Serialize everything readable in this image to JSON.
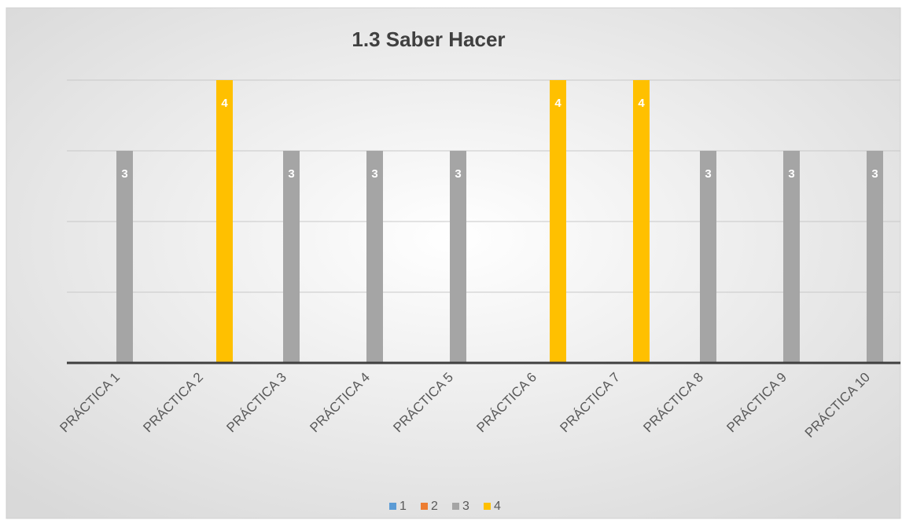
{
  "chart_data": {
    "type": "bar",
    "title": "1.3 Saber Hacer",
    "categories": [
      "PRÁCTICA 1",
      "PRÁCTICA 2",
      "PRÁCTICA 3",
      "PRÁCTICA 4",
      "PRÁCTICA 5",
      "PRÁCTICA 6",
      "PRÁCTICA 7",
      "PRÁCTICA 8",
      "PRÁCTICA 9",
      "PRÁCTICA 10"
    ],
    "series": [
      {
        "name": "1",
        "color": "#5b9bd5",
        "values": [
          null,
          null,
          null,
          null,
          null,
          null,
          null,
          null,
          null,
          null
        ]
      },
      {
        "name": "2",
        "color": "#ed7d31",
        "values": [
          null,
          null,
          null,
          null,
          null,
          null,
          null,
          null,
          null,
          null
        ]
      },
      {
        "name": "3",
        "color": "#a5a5a5",
        "values": [
          3,
          null,
          3,
          3,
          3,
          null,
          null,
          3,
          3,
          3
        ]
      },
      {
        "name": "4",
        "color": "#ffc000",
        "values": [
          null,
          4,
          null,
          null,
          null,
          4,
          4,
          null,
          null,
          null
        ]
      }
    ],
    "ylim": [
      0,
      4
    ],
    "yticks": [
      0,
      1,
      2,
      3,
      4
    ],
    "grid": true,
    "legend": "bottom"
  }
}
